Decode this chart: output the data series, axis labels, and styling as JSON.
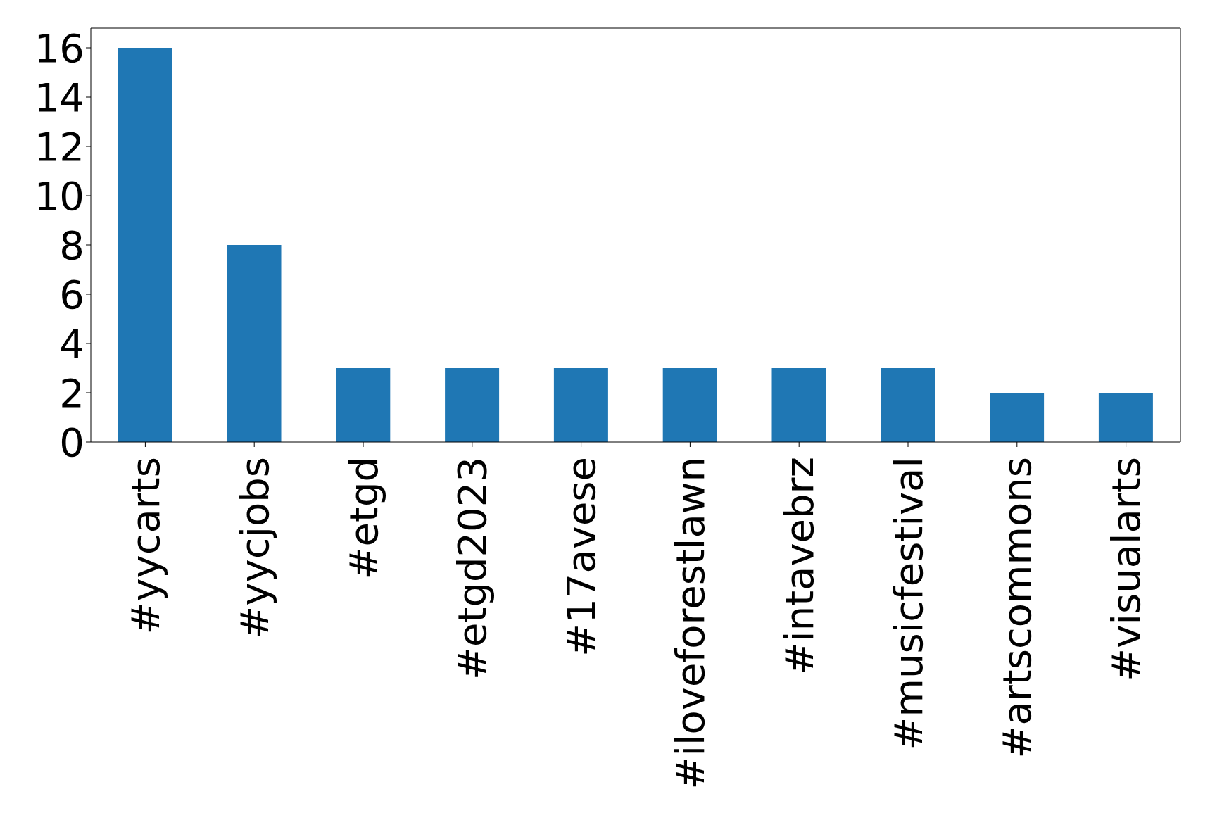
{
  "chart_data": {
    "type": "bar",
    "categories": [
      "#yycarts",
      "#yycjobs",
      "#etgd",
      "#etgd2023",
      "#17avese",
      "#iloveforestlawn",
      "#intavebrz",
      "#musicfestival",
      "#artscommons",
      "#visualarts"
    ],
    "values": [
      16,
      8,
      3,
      3,
      3,
      3,
      3,
      3,
      2,
      2
    ],
    "color": "#1f77b4",
    "ylim": [
      0,
      16.8
    ],
    "yticks": [
      0,
      2,
      4,
      6,
      8,
      10,
      12,
      14,
      16
    ]
  }
}
